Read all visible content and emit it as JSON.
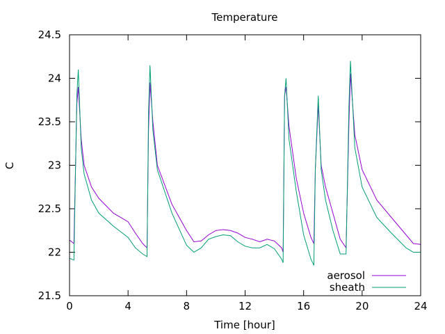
{
  "chart_data": {
    "type": "line",
    "title": "Temperature",
    "xlabel": "Time [hour]",
    "ylabel": "C",
    "xlim": [
      0,
      24
    ],
    "ylim": [
      21.5,
      24.5
    ],
    "xticks": [
      "0",
      "4",
      "8",
      "12",
      "16",
      "20",
      "24"
    ],
    "yticks": [
      "21.5",
      "22",
      "22.5",
      "23",
      "23.5",
      "24",
      "24.5"
    ],
    "grid": false,
    "legend_position": "bottom-right",
    "series": [
      {
        "name": "aerosol",
        "color": "#9400d3",
        "points": [
          [
            0,
            22.14
          ],
          [
            0.3,
            22.1
          ],
          [
            0.5,
            23.7
          ],
          [
            0.6,
            23.9
          ],
          [
            0.8,
            23.3
          ],
          [
            1.0,
            23.0
          ],
          [
            1.5,
            22.75
          ],
          [
            2.0,
            22.62
          ],
          [
            3.0,
            22.45
          ],
          [
            4.0,
            22.35
          ],
          [
            4.5,
            22.22
          ],
          [
            5.0,
            22.1
          ],
          [
            5.3,
            22.05
          ],
          [
            5.4,
            23.4
          ],
          [
            5.5,
            23.95
          ],
          [
            5.7,
            23.5
          ],
          [
            6.0,
            23.0
          ],
          [
            7.0,
            22.55
          ],
          [
            8.0,
            22.25
          ],
          [
            8.5,
            22.12
          ],
          [
            9.0,
            22.13
          ],
          [
            9.5,
            22.2
          ],
          [
            10.0,
            22.25
          ],
          [
            10.5,
            22.26
          ],
          [
            11.0,
            22.25
          ],
          [
            11.5,
            22.22
          ],
          [
            12.0,
            22.17
          ],
          [
            12.5,
            22.15
          ],
          [
            13.0,
            22.12
          ],
          [
            13.5,
            22.15
          ],
          [
            14.0,
            22.13
          ],
          [
            14.5,
            22.05
          ],
          [
            14.6,
            22.0
          ],
          [
            14.7,
            23.8
          ],
          [
            14.8,
            23.9
          ],
          [
            15.0,
            23.45
          ],
          [
            15.5,
            22.85
          ],
          [
            16.0,
            22.45
          ],
          [
            16.5,
            22.17
          ],
          [
            16.7,
            22.1
          ],
          [
            16.8,
            22.95
          ],
          [
            17.0,
            23.7
          ],
          [
            17.2,
            23.0
          ],
          [
            17.5,
            22.75
          ],
          [
            18.0,
            22.45
          ],
          [
            18.5,
            22.15
          ],
          [
            18.9,
            22.05
          ],
          [
            19.1,
            23.5
          ],
          [
            19.2,
            24.05
          ],
          [
            19.5,
            23.35
          ],
          [
            20.0,
            22.95
          ],
          [
            21.0,
            22.6
          ],
          [
            22.0,
            22.4
          ],
          [
            23.0,
            22.2
          ],
          [
            23.5,
            22.1
          ],
          [
            24.0,
            22.09
          ]
        ]
      },
      {
        "name": "sheath",
        "color": "#009e73",
        "points": [
          [
            0,
            21.93
          ],
          [
            0.3,
            21.91
          ],
          [
            0.5,
            23.8
          ],
          [
            0.6,
            24.1
          ],
          [
            0.8,
            23.2
          ],
          [
            1.0,
            22.9
          ],
          [
            1.5,
            22.6
          ],
          [
            2.0,
            22.45
          ],
          [
            3.0,
            22.3
          ],
          [
            4.0,
            22.17
          ],
          [
            4.5,
            22.05
          ],
          [
            5.0,
            21.98
          ],
          [
            5.3,
            21.95
          ],
          [
            5.4,
            23.6
          ],
          [
            5.5,
            24.15
          ],
          [
            5.7,
            23.4
          ],
          [
            6.0,
            22.95
          ],
          [
            7.0,
            22.45
          ],
          [
            8.0,
            22.08
          ],
          [
            8.5,
            22.0
          ],
          [
            9.0,
            22.05
          ],
          [
            9.5,
            22.15
          ],
          [
            10.0,
            22.18
          ],
          [
            10.5,
            22.2
          ],
          [
            11.0,
            22.19
          ],
          [
            11.5,
            22.12
          ],
          [
            12.0,
            22.07
          ],
          [
            12.5,
            22.05
          ],
          [
            13.0,
            22.05
          ],
          [
            13.5,
            22.09
          ],
          [
            14.0,
            22.04
          ],
          [
            14.5,
            21.92
          ],
          [
            14.6,
            21.88
          ],
          [
            14.7,
            23.8
          ],
          [
            14.8,
            24.0
          ],
          [
            15.0,
            23.3
          ],
          [
            15.5,
            22.7
          ],
          [
            16.0,
            22.2
          ],
          [
            16.5,
            21.92
          ],
          [
            16.7,
            21.85
          ],
          [
            16.8,
            22.95
          ],
          [
            17.0,
            23.8
          ],
          [
            17.2,
            22.95
          ],
          [
            17.5,
            22.6
          ],
          [
            18.0,
            22.25
          ],
          [
            18.5,
            21.98
          ],
          [
            18.9,
            21.98
          ],
          [
            19.1,
            23.7
          ],
          [
            19.2,
            24.2
          ],
          [
            19.5,
            23.2
          ],
          [
            20.0,
            22.75
          ],
          [
            21.0,
            22.4
          ],
          [
            22.0,
            22.22
          ],
          [
            23.0,
            22.05
          ],
          [
            23.5,
            22.0
          ],
          [
            24.0,
            22.0
          ]
        ]
      }
    ]
  }
}
